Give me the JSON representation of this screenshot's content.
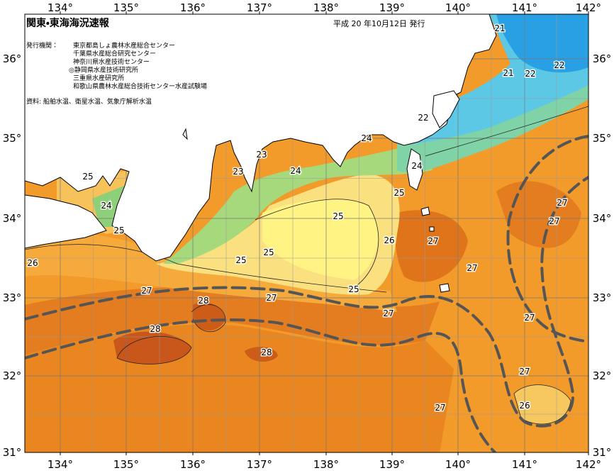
{
  "header": {
    "title": "関東・東海海況速報",
    "date": "平成 20 年10月12日 発行"
  },
  "issuers": {
    "label": "発行機関：",
    "names": [
      "東京都島しょ農林水産総合センター",
      "千葉県水産総合研究センター",
      "神奈川県水産技術センター",
      "◎静岡県水産技術研究所",
      "三重県水産研究所",
      "和歌山県農林水産総合技術センター水産試験場"
    ]
  },
  "sources": "資料: 船舶水温、衛星水温、気象庁解析水温",
  "axes": {
    "longitude_labels": [
      "134°",
      "135°",
      "136°",
      "137°",
      "138°",
      "139°",
      "140°",
      "141°",
      "142°"
    ],
    "latitude_labels": [
      "36°",
      "35°",
      "34°",
      "33°",
      "32°",
      "31°"
    ]
  },
  "contour_labels": [
    "21",
    "21",
    "22",
    "22",
    "22",
    "24",
    "23",
    "23",
    "24",
    "24",
    "25",
    "25",
    "24",
    "25",
    "25",
    "26",
    "27",
    "25",
    "25",
    "26",
    "27",
    "27",
    "27",
    "25",
    "27",
    "27",
    "28",
    "27",
    "27",
    "28",
    "28",
    "27",
    "26",
    "27"
  ]
}
